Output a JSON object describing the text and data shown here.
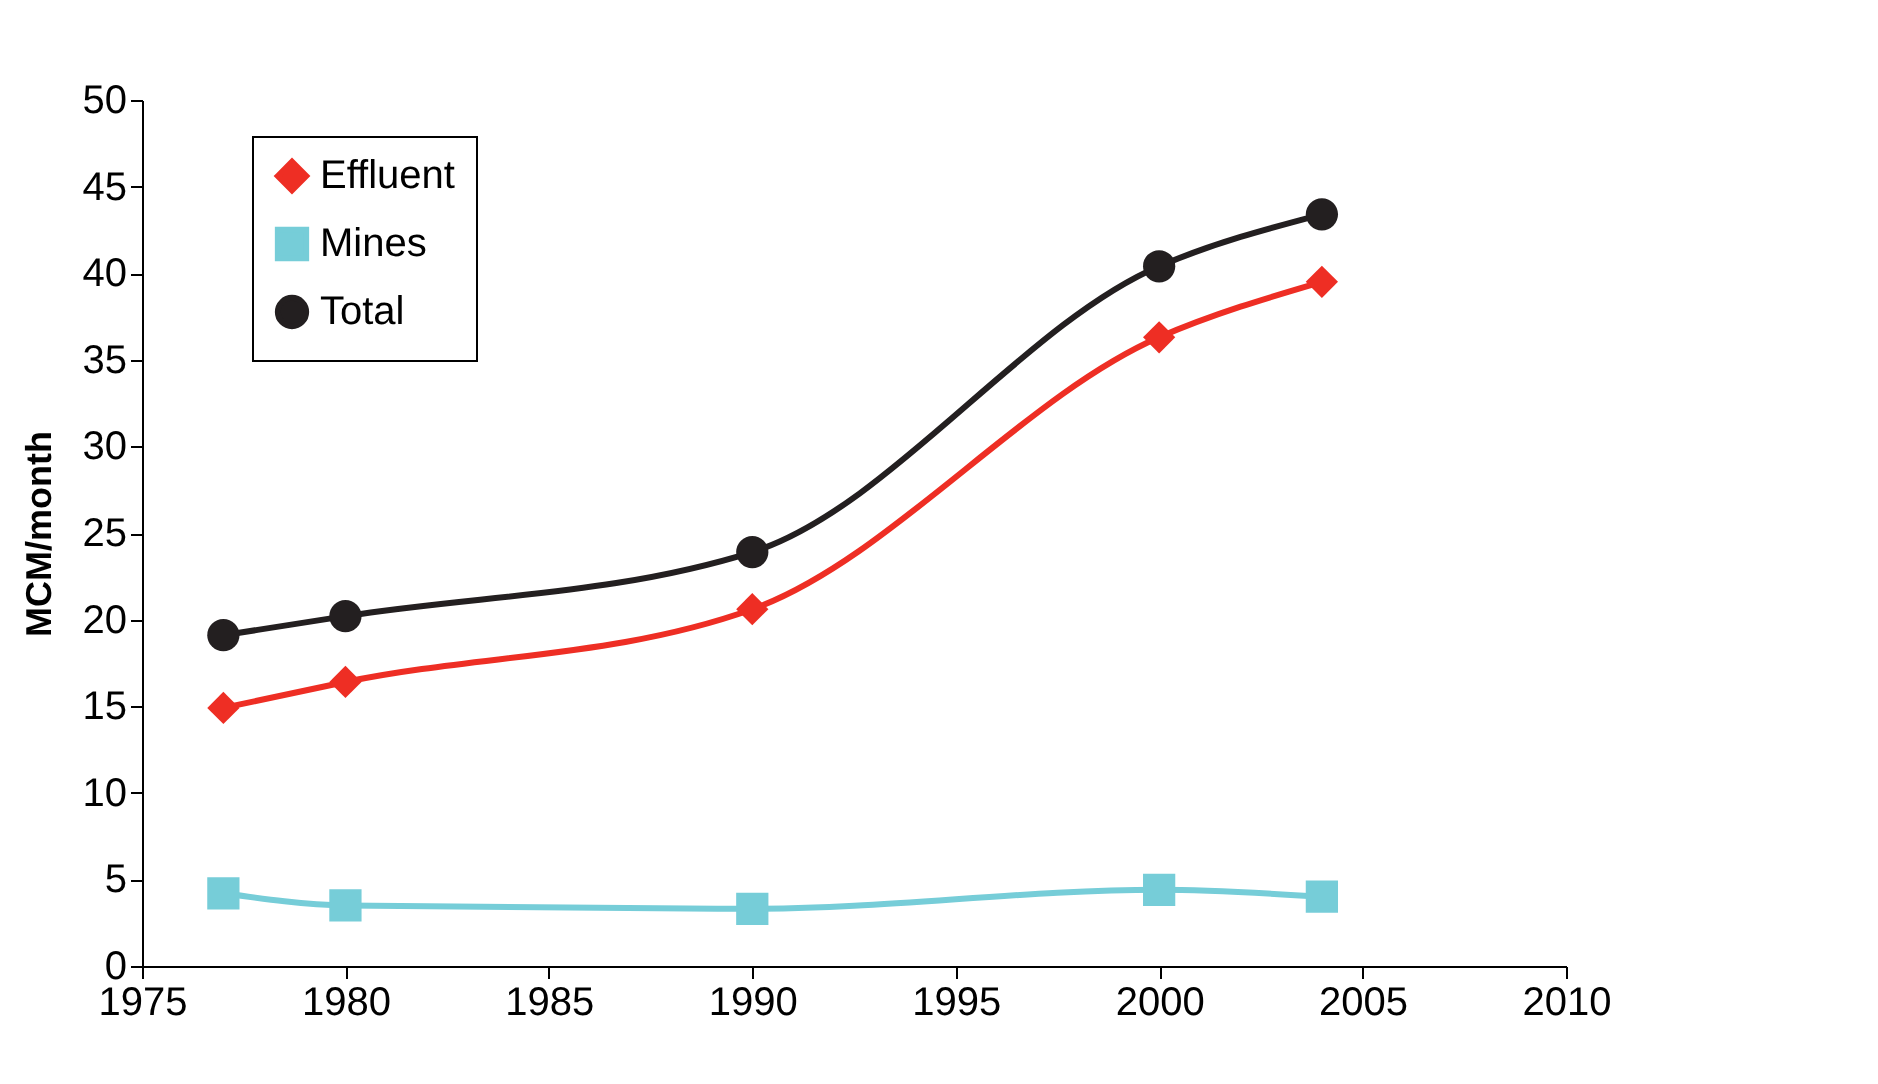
{
  "chart_data": {
    "type": "line",
    "ylabel": "MCM/month",
    "x": [
      1977,
      1980,
      1990,
      2000,
      2004
    ],
    "series": [
      {
        "name": "Effluent",
        "color": "#ee2e24",
        "marker": "diamond",
        "values": [
          14.9,
          16.4,
          20.6,
          36.3,
          39.5
        ]
      },
      {
        "name": "Mines",
        "color": "#76cdd8",
        "marker": "square",
        "values": [
          4.2,
          3.5,
          3.3,
          4.4,
          4.0
        ]
      },
      {
        "name": "Total",
        "color": "#231f20",
        "marker": "circle",
        "values": [
          19.1,
          20.2,
          23.9,
          40.4,
          43.4
        ]
      }
    ],
    "xlim": [
      1975,
      2010
    ],
    "xticks": [
      1975,
      1980,
      1985,
      1990,
      1995,
      2000,
      2005,
      2010
    ],
    "ylim": [
      0,
      50
    ],
    "yticks": [
      0,
      5,
      10,
      15,
      20,
      25,
      30,
      35,
      40,
      45,
      50
    ],
    "grid": false,
    "legend": "top left",
    "line_style": "solid"
  }
}
